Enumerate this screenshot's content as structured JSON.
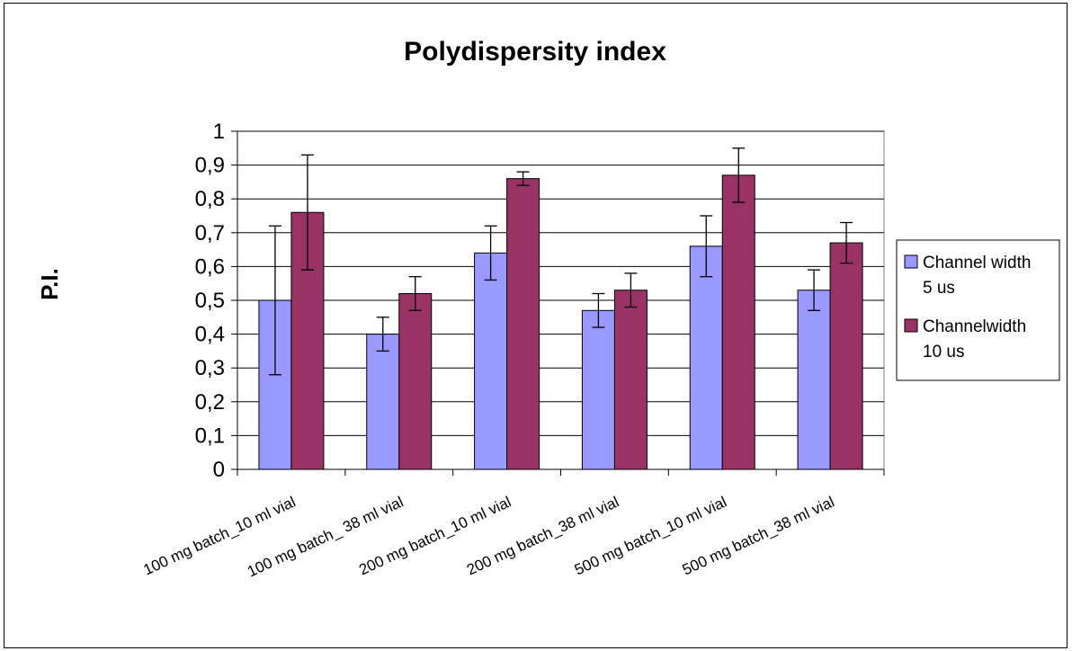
{
  "chart_data": {
    "type": "bar",
    "title": "Polydispersity index",
    "xlabel": "",
    "ylabel": "P.I.",
    "ylim": [
      0,
      1
    ],
    "yticks": [
      "0",
      "0,1",
      "0,2",
      "0,3",
      "0,4",
      "0,5",
      "0,6",
      "0,7",
      "0,8",
      "0,9",
      "1"
    ],
    "grid": true,
    "legend_position": "right",
    "categories": [
      "100 mg batch_10 ml vial",
      "100 mg batch_ 38 ml vial",
      "200 mg batch_10 ml vial",
      "200 mg batch_38 ml vial",
      "500 mg batch_10 ml vial",
      "500 mg batch_38 ml vial"
    ],
    "series": [
      {
        "name": "Channel width 5 us",
        "legend_lines": [
          "Channel width",
          "5 us"
        ],
        "color": "#9999ff",
        "values": [
          0.5,
          0.4,
          0.64,
          0.47,
          0.66,
          0.53
        ],
        "errors": [
          0.22,
          0.05,
          0.08,
          0.05,
          0.09,
          0.06
        ]
      },
      {
        "name": "Channelwidth 10 us",
        "legend_lines": [
          "Channelwidth",
          "10 us"
        ],
        "color": "#993366",
        "values": [
          0.76,
          0.52,
          0.86,
          0.53,
          0.87,
          0.67
        ],
        "errors": [
          0.17,
          0.05,
          0.02,
          0.05,
          0.08,
          0.06
        ]
      }
    ]
  }
}
